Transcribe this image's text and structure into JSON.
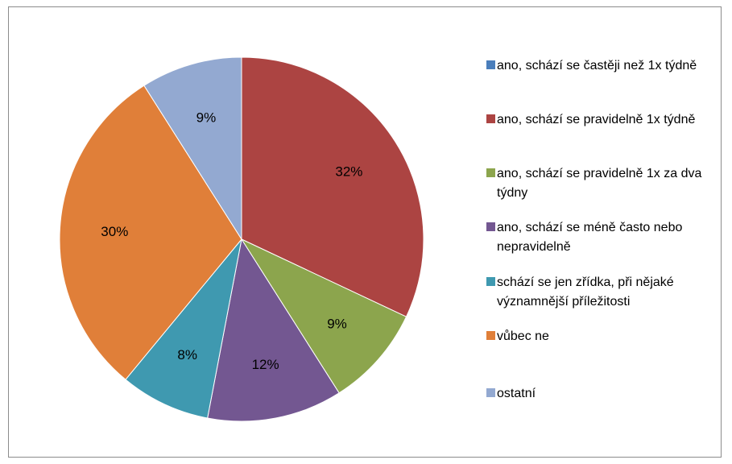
{
  "chart_data": {
    "type": "pie",
    "title": "",
    "legend_position": "right",
    "slices": [
      {
        "label": "ano, schází se častěji než 1x týdně",
        "value": 0,
        "display": "",
        "color": "#4A7EBB"
      },
      {
        "label": "ano, schází se pravidelně 1x týdně",
        "value": 32,
        "display": "32%",
        "color": "#AC4442"
      },
      {
        "label": "ano, schází se pravidelně 1x za dva týdny",
        "value": 9,
        "display": "9%",
        "color": "#8CA54D"
      },
      {
        "label": "ano, schází se méně často nebo nepravidelně",
        "value": 12,
        "display": "12%",
        "color": "#735791"
      },
      {
        "label": "schází se jen zřídka, při nějaké významnější příležitosti",
        "value": 8,
        "display": "8%",
        "color": "#3F99B0"
      },
      {
        "label": "vůbec ne",
        "value": 30,
        "display": "30%",
        "color": "#E07F39"
      },
      {
        "label": "ostatní",
        "value": 9,
        "display": "9%",
        "color": "#93A9D1"
      }
    ]
  }
}
